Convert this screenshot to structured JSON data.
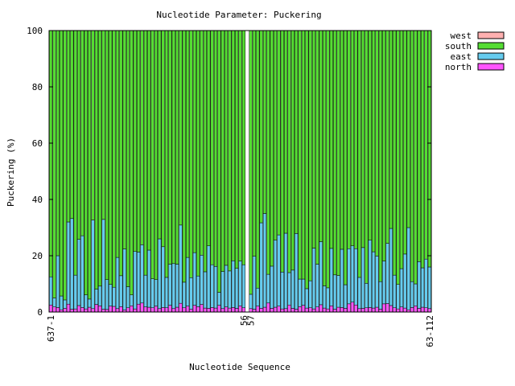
{
  "chart_data": {
    "type": "bar",
    "stacked": true,
    "title": "Nucleotide Parameter: Puckering",
    "xlabel": "Nucleotide Sequence",
    "ylabel": "Puckering (%)",
    "ylim": [
      0,
      100
    ],
    "y_ticks": [
      "0",
      "20",
      "40",
      "60",
      "80",
      "100"
    ],
    "legend": {
      "placement": "right-top",
      "order": [
        "west",
        "south",
        "east",
        "north"
      ]
    },
    "colors": {
      "west": "#ffb0b0",
      "south": "#55dd33",
      "east": "#66ccee",
      "north": "#ff55ff",
      "edge": "#000000"
    },
    "x_tick_labels": [
      "637-1",
      "56",
      "57",
      "63-112"
    ],
    "gap_after_index": 55,
    "series": [
      {
        "name": "north",
        "values": [
          2.5,
          1.8,
          1.6,
          0.8,
          1.3,
          2.8,
          1.0,
          1.1,
          2.3,
          1.6,
          1.1,
          1.7,
          1.2,
          2.7,
          2.2,
          1.0,
          0.9,
          2.1,
          2.0,
          1.2,
          1.9,
          0.7,
          1.5,
          2.2,
          1.1,
          2.8,
          3.2,
          1.8,
          1.7,
          1.5,
          2.1,
          1.2,
          1.6,
          1.5,
          2.4,
          1.2,
          1.7,
          3.1,
          1.5,
          2.1,
          1.0,
          2.4,
          1.9,
          2.7,
          1.4,
          1.3,
          1.6,
          1.4,
          2.4,
          1.2,
          1.8,
          1.4,
          1.6,
          1.3,
          2.2,
          1.5,
          1.2,
          1.0,
          2.1,
          1.3,
          1.7,
          3.2,
          1.3,
          1.7,
          2.1,
          1.1,
          1.2,
          2.5,
          1.3,
          1.0,
          1.9,
          2.4,
          1.4,
          1.5,
          1.1,
          1.8,
          2.6,
          1.4,
          1.1,
          2.2,
          1.0,
          1.7,
          1.6,
          1.3,
          2.9,
          3.5,
          2.5,
          1.2,
          1.3,
          1.5,
          1.6,
          1.4,
          1.7,
          1.0,
          2.9,
          3.0,
          2.3,
          1.5,
          1.1,
          1.8,
          1.4,
          0.8,
          1.6,
          2.2,
          1.3,
          1.7,
          1.5,
          1.2
        ]
      },
      {
        "name": "east",
        "values": [
          10.0,
          3.2,
          18.4,
          4.9,
          3.0,
          29.2,
          32.2,
          12.0,
          23.5,
          25.5,
          5.0,
          2.9,
          31.5,
          5.4,
          7.0,
          31.9,
          10.6,
          7.7,
          6.8,
          18.2,
          11.0,
          21.7,
          7.5,
          3.9,
          20.4,
          18.5,
          20.7,
          11.3,
          20.3,
          10.3,
          9.4,
          24.8,
          21.6,
          10.8,
          14.6,
          16.0,
          15.3,
          27.8,
          9.1,
          17.3,
          11.2,
          18.7,
          10.9,
          17.5,
          12.9,
          22.2,
          15.2,
          14.8,
          4.6,
          13.2,
          14.8,
          13.2,
          16.6,
          14.2,
          15.9,
          15.3,
          5.1,
          18.8,
          6.4,
          30.4,
          33.3,
          10.2,
          15.0,
          23.8,
          25.3,
          13.1,
          26.8,
          11.5,
          13.6,
          26.9,
          9.8,
          9.3,
          6.9,
          9.6,
          21.6,
          15.2,
          22.4,
          7.9,
          7.5,
          20.4,
          12.2,
          11.3,
          20.7,
          8.4,
          19.6,
          20.0,
          20.0,
          11.1,
          21.6,
          8.7,
          23.9,
          20.0,
          18.2,
          9.8,
          15.2,
          21.4,
          27.4,
          11.6,
          8.7,
          13.6,
          19.2,
          29.2,
          9.2,
          7.8,
          16.6,
          14.0,
          17.3,
          14.8
        ]
      },
      {
        "name": "south",
        "values": [
          87.5,
          95.0,
          80.0,
          94.3,
          95.7,
          68.0,
          66.8,
          86.9,
          74.2,
          72.9,
          93.9,
          95.4,
          67.3,
          91.9,
          90.8,
          67.1,
          88.5,
          90.2,
          91.2,
          80.6,
          87.1,
          77.6,
          91.0,
          93.9,
          78.5,
          78.7,
          76.1,
          86.9,
          78.0,
          88.2,
          88.5,
          74.0,
          76.8,
          87.7,
          83.0,
          82.8,
          83.0,
          69.1,
          89.4,
          80.6,
          87.8,
          78.9,
          87.2,
          79.8,
          85.7,
          76.5,
          83.2,
          83.8,
          93.0,
          85.6,
          83.4,
          85.4,
          81.8,
          84.5,
          81.9,
          83.2,
          93.7,
          80.2,
          91.5,
          68.3,
          65.0,
          86.6,
          83.7,
          74.5,
          72.6,
          85.8,
          72.0,
          86.0,
          85.1,
          72.1,
          88.3,
          88.3,
          91.7,
          88.9,
          77.3,
          83.0,
          75.0,
          90.7,
          91.4,
          77.4,
          86.8,
          87.0,
          77.7,
          90.3,
          77.5,
          76.5,
          77.5,
          87.7,
          77.1,
          89.8,
          74.5,
          78.6,
          80.1,
          89.2,
          81.9,
          75.6,
          70.3,
          86.9,
          90.2,
          84.6,
          79.4,
          70.0,
          89.2,
          90.0,
          82.1,
          84.3,
          81.2,
          84.0
        ]
      },
      {
        "name": "west",
        "values": [
          0,
          0,
          0,
          0,
          0,
          0,
          0,
          0,
          0,
          0,
          0,
          0,
          0,
          0,
          0,
          0,
          0,
          0,
          0,
          0,
          0,
          0,
          0,
          0,
          0,
          0,
          0,
          0,
          0,
          0,
          0,
          0,
          0,
          0,
          0,
          0,
          0,
          0,
          0,
          0,
          0,
          0,
          0,
          0,
          0,
          0,
          0,
          0,
          0,
          0,
          0,
          0,
          0,
          0,
          0,
          0,
          0,
          0,
          0,
          0,
          0,
          0,
          0,
          0,
          0,
          0,
          0,
          0,
          0,
          0,
          0,
          0,
          0,
          0,
          0,
          0,
          0,
          0,
          0,
          0,
          0,
          0,
          0,
          0,
          0,
          0,
          0,
          0,
          0,
          0,
          0,
          0,
          0,
          0,
          0,
          0,
          0,
          0,
          0,
          0,
          0,
          0,
          0,
          0,
          0,
          0,
          0,
          0
        ]
      }
    ]
  }
}
